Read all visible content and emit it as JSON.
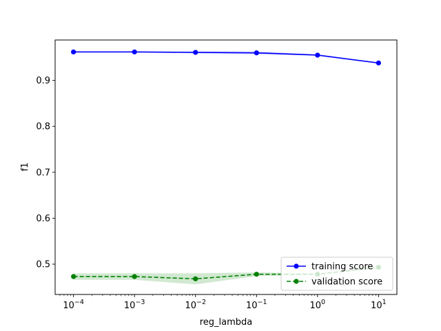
{
  "chart_data": {
    "type": "line",
    "title": "",
    "xlabel": "reg_lambda",
    "ylabel": "f1",
    "xscale": "log",
    "xlim": [
      5e-05,
      20
    ],
    "ylim": [
      0.434,
      0.988
    ],
    "x": [
      0.0001,
      0.001,
      0.01,
      0.1,
      1,
      10
    ],
    "xtick_labels": [
      {
        "base": "10",
        "exp": "−4",
        "value": 0.0001
      },
      {
        "base": "10",
        "exp": "−3",
        "value": 0.001
      },
      {
        "base": "10",
        "exp": "−2",
        "value": 0.01
      },
      {
        "base": "10",
        "exp": "−1",
        "value": 0.1
      },
      {
        "base": "10",
        "exp": "0",
        "value": 1
      },
      {
        "base": "10",
        "exp": "1",
        "value": 10
      }
    ],
    "yticks": [
      0.5,
      0.6,
      0.7,
      0.8,
      0.9
    ],
    "ytick_labels": [
      "0.5",
      "0.6",
      "0.7",
      "0.8",
      "0.9"
    ],
    "grid": false,
    "legend_position": "lower-right",
    "series": [
      {
        "name": "training score",
        "color": "#0000ff",
        "linestyle": "solid",
        "marker": "circle",
        "values": [
          0.962,
          0.962,
          0.961,
          0.96,
          0.955,
          0.938
        ],
        "band_lower": [
          0.961,
          0.961,
          0.959,
          0.957,
          0.954,
          0.937
        ],
        "band_upper": [
          0.963,
          0.963,
          0.963,
          0.963,
          0.957,
          0.939
        ]
      },
      {
        "name": "validation score",
        "color": "#008000",
        "linestyle": "dashed",
        "marker": "circle",
        "values": [
          0.473,
          0.473,
          0.468,
          0.478,
          0.478,
          0.493
        ],
        "band_lower": [
          0.466,
          0.466,
          0.456,
          0.474,
          0.476,
          0.491
        ],
        "band_upper": [
          0.48,
          0.48,
          0.48,
          0.482,
          0.48,
          0.495
        ]
      }
    ]
  }
}
